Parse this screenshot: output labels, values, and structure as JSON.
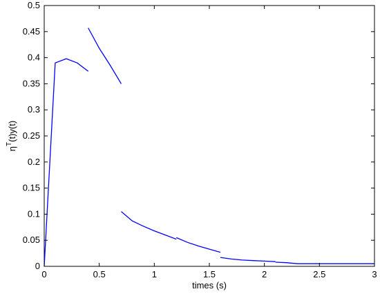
{
  "chart_data": {
    "type": "line",
    "title": "",
    "xlabel": "times (s)",
    "ylabel": "η",
    "ylabel_superscript": "T",
    "ylabel_rest": "(t)y(t)",
    "xlim": [
      0,
      3
    ],
    "ylim": [
      0,
      0.5
    ],
    "x_ticks": [
      0,
      0.5,
      1,
      1.5,
      2,
      2.5,
      3
    ],
    "x_tick_labels": [
      "0",
      "0.5",
      "1",
      "1.5",
      "2",
      "2.5",
      "3"
    ],
    "y_ticks": [
      0,
      0.05,
      0.1,
      0.15,
      0.2,
      0.25,
      0.3,
      0.35,
      0.4,
      0.45,
      0.5
    ],
    "y_tick_labels": [
      "0",
      "0.05",
      "0.1",
      "0.15",
      "0.2",
      "0.25",
      "0.3",
      "0.35",
      "0.4",
      "0.45",
      "0.5"
    ],
    "grid": false,
    "line_color": "#0000ff",
    "series": [
      {
        "segments": [
          {
            "x": [
              0,
              0.1,
              0.2,
              0.3,
              0.4
            ],
            "y": [
              0,
              0.39,
              0.398,
              0.39,
              0.374
            ]
          },
          {
            "x": [
              0.4,
              0.5,
              0.6,
              0.7
            ],
            "y": [
              0.457,
              0.418,
              0.385,
              0.35
            ]
          },
          {
            "x": [
              0.7,
              0.8,
              0.9,
              1.0,
              1.1,
              1.2
            ],
            "y": [
              0.105,
              0.087,
              0.077,
              0.068,
              0.06,
              0.052
            ]
          },
          {
            "x": [
              1.2,
              1.3,
              1.4,
              1.5,
              1.6
            ],
            "y": [
              0.055,
              0.046,
              0.039,
              0.033,
              0.027
            ]
          },
          {
            "x": [
              1.6,
              1.7,
              1.8,
              1.9,
              2.0,
              2.1
            ],
            "y": [
              0.017,
              0.014,
              0.012,
              0.011,
              0.01,
              0.009
            ]
          },
          {
            "x": [
              2.1,
              2.2,
              2.3,
              2.5,
              2.7,
              3.0
            ],
            "y": [
              0.008,
              0.007,
              0.005,
              0.005,
              0.005,
              0.005
            ]
          }
        ]
      }
    ]
  }
}
